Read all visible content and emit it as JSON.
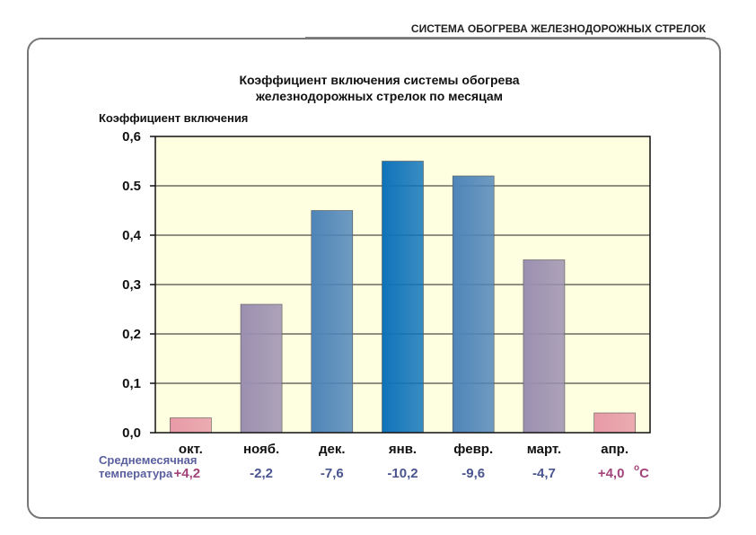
{
  "header": "СИСТЕМА ОБОГРЕВА ЖЕЛЕЗНОДОРОЖНЫХ СТРЕЛОК",
  "chart_data": {
    "type": "bar",
    "title_line1": "Коэффициент включения системы  обогрева",
    "title_line2": "железнодорожных стрелок по месяцам",
    "ylabel": "Коэффициент включения",
    "xlabel": "",
    "categories": [
      "окт.",
      "нояб.",
      "дек.",
      "янв.",
      "февр.",
      "март.",
      "апр."
    ],
    "values": [
      0.03,
      0.26,
      0.45,
      0.55,
      0.52,
      0.35,
      0.04
    ],
    "ylim": [
      0,
      0.6
    ],
    "yticks": [
      {
        "value": 0,
        "label": "0,0"
      },
      {
        "value": 0.1,
        "label": "0,1"
      },
      {
        "value": 0.2,
        "label": "0,2"
      },
      {
        "value": 0.3,
        "label": "0,3"
      },
      {
        "value": 0.4,
        "label": "0,4"
      },
      {
        "value": 0.5,
        "label": "0.5"
      },
      {
        "value": 0.6,
        "label": "0,6"
      }
    ],
    "grid": true,
    "plot_background": "#fefee0",
    "bar_colors": [
      "#e79aa6",
      "#9b8fb0",
      "#4f85b9",
      "#0f73ba",
      "#4f85b9",
      "#9b8fb0",
      "#e79aa6"
    ]
  },
  "temperature": {
    "label_line1": "Среднемесячная",
    "label_line2": "температура",
    "values": [
      "+4,2",
      "-2,2",
      "-7,6",
      "-10,2",
      "-9,6",
      "-4,7",
      "+4,0"
    ],
    "unit_o": "o",
    "unit_c": "С",
    "colors": [
      "#a2447a",
      "#4a5590",
      "#4a5590",
      "#4a5590",
      "#4a5590",
      "#4a5590",
      "#a2447a"
    ]
  }
}
